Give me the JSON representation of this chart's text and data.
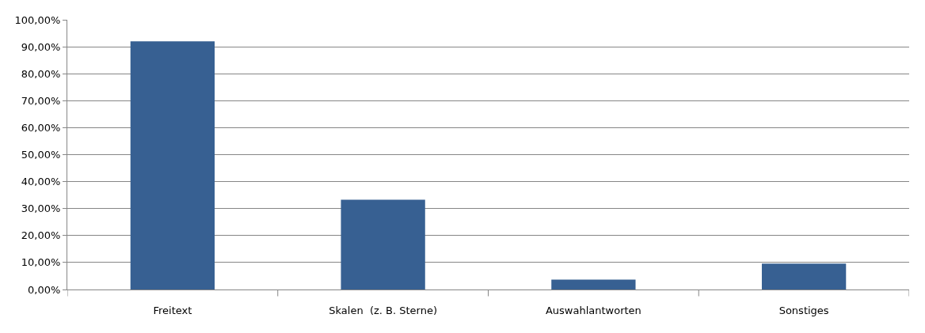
{
  "chart_data": {
    "type": "bar",
    "categories": [
      "Freitext",
      "Skalen  (z. B. Sterne)",
      "Auswahlantworten",
      "Sonstiges"
    ],
    "values": [
      92.0,
      33.3,
      3.7,
      9.6
    ],
    "color": "#376092",
    "ylim": [
      0,
      100
    ],
    "yticks": [
      {
        "value": 0,
        "label": "0,00%"
      },
      {
        "value": 10,
        "label": "10,00%"
      },
      {
        "value": 20,
        "label": "20,00%"
      },
      {
        "value": 30,
        "label": "30,00%"
      },
      {
        "value": 40,
        "label": "40,00%"
      },
      {
        "value": 50,
        "label": "50,00%"
      },
      {
        "value": 60,
        "label": "60,00%"
      },
      {
        "value": 70,
        "label": "70,00%"
      },
      {
        "value": 80,
        "label": "80,00%"
      },
      {
        "value": 90,
        "label": "90,00%"
      },
      {
        "value": 100,
        "label": "100,00%"
      }
    ],
    "grid": "y"
  }
}
